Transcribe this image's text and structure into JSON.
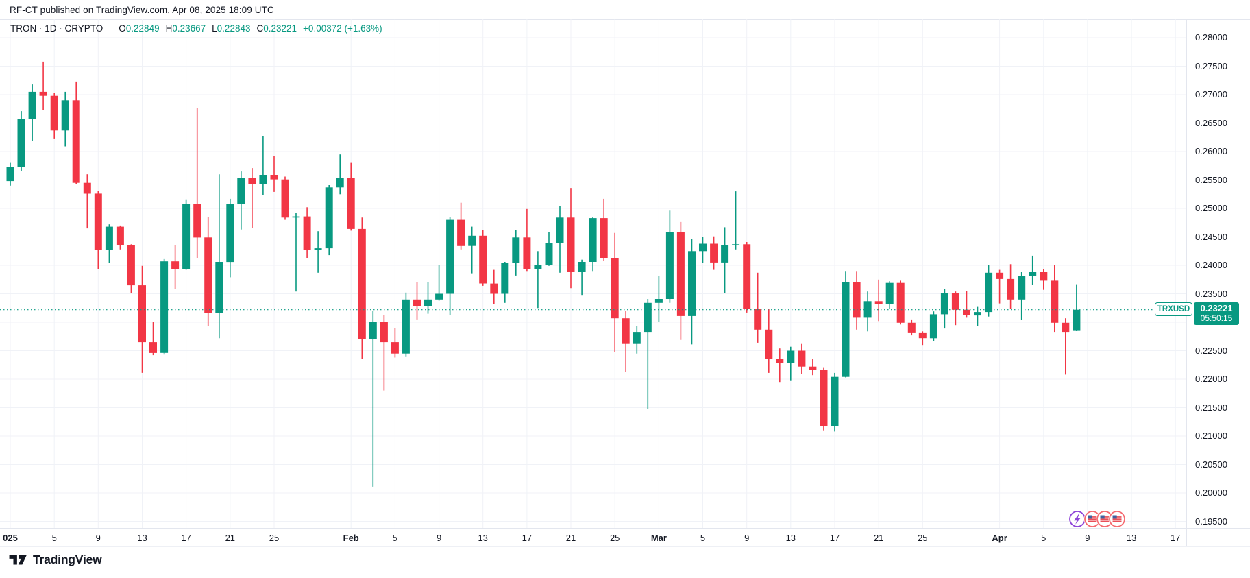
{
  "header": {
    "published_line": "RF-CT published on TradingView.com, Apr 08, 2025 18:09 UTC"
  },
  "legend": {
    "symbol": "TRON · 1D · CRYPTO",
    "o_label": "O",
    "o_value": "0.22849",
    "h_label": "H",
    "h_value": "0.23667",
    "l_label": "L",
    "l_value": "0.22843",
    "c_label": "C",
    "c_value": "0.23221",
    "change": "+0.00372 (+1.63%)"
  },
  "price_label": {
    "symbol": "TRXUSD",
    "price": "0.23221",
    "countdown": "05:50:15"
  },
  "footer": {
    "brand": "TradingView",
    "logo_icon": "tradingview-logo"
  },
  "colors": {
    "up": "#089981",
    "down": "#f23645",
    "grid": "#f0f2f7",
    "text": "#131722",
    "axis_line": "#e3e6ee",
    "accent": "#089981",
    "event_purple": "#8e44d8",
    "event_flag_border": "#f5696f",
    "flag_blue": "#41619e",
    "flag_red": "#e8505a"
  },
  "events": {
    "icons": [
      "lightning-event-icon",
      "us-flag-event-icon",
      "us-flag-event-icon",
      "us-flag-event-icon"
    ]
  },
  "chart_data": {
    "type": "bar",
    "subtype": "candlestick",
    "title": "TRON · 1D · CRYPTO",
    "xlabel": "",
    "ylabel": "",
    "grid": true,
    "legend_position": "none",
    "ylim": [
      0.195,
      0.28
    ],
    "y_tick_step": 0.005,
    "last_price": 0.23221,
    "y_ticks": [
      "0.28000",
      "0.27500",
      "0.27000",
      "0.26500",
      "0.26000",
      "0.25500",
      "0.25000",
      "0.24500",
      "0.24000",
      "0.23500",
      "0.23000",
      "0.22500",
      "0.22000",
      "0.21500",
      "0.21000",
      "0.20500",
      "0.20000",
      "0.19500"
    ],
    "x_ticks": [
      {
        "label": "025",
        "day": 0,
        "bold": true
      },
      {
        "label": "5",
        "day": 4
      },
      {
        "label": "9",
        "day": 8
      },
      {
        "label": "13",
        "day": 12
      },
      {
        "label": "17",
        "day": 16
      },
      {
        "label": "21",
        "day": 20
      },
      {
        "label": "25",
        "day": 24
      },
      {
        "label": "Feb",
        "day": 31,
        "bold": true
      },
      {
        "label": "5",
        "day": 35
      },
      {
        "label": "9",
        "day": 39
      },
      {
        "label": "13",
        "day": 43
      },
      {
        "label": "17",
        "day": 47
      },
      {
        "label": "21",
        "day": 51
      },
      {
        "label": "25",
        "day": 55
      },
      {
        "label": "Mar",
        "day": 59,
        "bold": true
      },
      {
        "label": "5",
        "day": 63
      },
      {
        "label": "9",
        "day": 67
      },
      {
        "label": "13",
        "day": 71
      },
      {
        "label": "17",
        "day": 75
      },
      {
        "label": "21",
        "day": 79
      },
      {
        "label": "25",
        "day": 83
      },
      {
        "label": "Apr",
        "day": 90,
        "bold": true
      },
      {
        "label": "5",
        "day": 94
      },
      {
        "label": "9",
        "day": 98
      },
      {
        "label": "13",
        "day": 102
      },
      {
        "label": "17",
        "day": 106
      }
    ],
    "candles_format": [
      "date",
      "open",
      "high",
      "low",
      "close"
    ],
    "candles": [
      [
        "2025-01-01",
        0.2548,
        0.258,
        0.254,
        0.2573
      ],
      [
        "2025-01-02",
        0.2573,
        0.2671,
        0.2566,
        0.2657
      ],
      [
        "2025-01-03",
        0.2657,
        0.2718,
        0.2619,
        0.2705
      ],
      [
        "2025-01-04",
        0.2705,
        0.2758,
        0.2673,
        0.2698
      ],
      [
        "2025-01-05",
        0.2698,
        0.2703,
        0.2623,
        0.2637
      ],
      [
        "2025-01-06",
        0.2637,
        0.2705,
        0.2609,
        0.269
      ],
      [
        "2025-01-07",
        0.269,
        0.2723,
        0.2543,
        0.2545
      ],
      [
        "2025-01-08",
        0.2545,
        0.256,
        0.2465,
        0.2526
      ],
      [
        "2025-01-09",
        0.2526,
        0.2531,
        0.2394,
        0.2427
      ],
      [
        "2025-01-10",
        0.2427,
        0.2472,
        0.2404,
        0.2468
      ],
      [
        "2025-01-11",
        0.2468,
        0.247,
        0.2428,
        0.2435
      ],
      [
        "2025-01-12",
        0.2435,
        0.2437,
        0.2351,
        0.2365
      ],
      [
        "2025-01-13",
        0.2365,
        0.2399,
        0.2211,
        0.2265
      ],
      [
        "2025-01-14",
        0.2265,
        0.2301,
        0.2242,
        0.2246
      ],
      [
        "2025-01-15",
        0.2246,
        0.2411,
        0.2243,
        0.2407
      ],
      [
        "2025-01-16",
        0.2407,
        0.2435,
        0.2359,
        0.2394
      ],
      [
        "2025-01-17",
        0.2394,
        0.2516,
        0.2392,
        0.2508
      ],
      [
        "2025-01-18",
        0.2508,
        0.2677,
        0.2412,
        0.2449
      ],
      [
        "2025-01-19",
        0.2449,
        0.2485,
        0.2294,
        0.2316
      ],
      [
        "2025-01-20",
        0.2316,
        0.256,
        0.2272,
        0.2406
      ],
      [
        "2025-01-21",
        0.2406,
        0.2517,
        0.2379,
        0.2508
      ],
      [
        "2025-01-22",
        0.2508,
        0.2565,
        0.2463,
        0.2554
      ],
      [
        "2025-01-23",
        0.2554,
        0.2571,
        0.2466,
        0.2543
      ],
      [
        "2025-01-24",
        0.2543,
        0.2627,
        0.2523,
        0.2559
      ],
      [
        "2025-01-25",
        0.2559,
        0.2592,
        0.2529,
        0.2551
      ],
      [
        "2025-01-26",
        0.2551,
        0.2556,
        0.248,
        0.2484
      ],
      [
        "2025-01-27",
        0.2484,
        0.2492,
        0.2354,
        0.2486
      ],
      [
        "2025-01-28",
        0.2486,
        0.2502,
        0.2412,
        0.2427
      ],
      [
        "2025-01-29",
        0.2427,
        0.246,
        0.2387,
        0.243
      ],
      [
        "2025-01-30",
        0.243,
        0.2541,
        0.2418,
        0.2537
      ],
      [
        "2025-01-31",
        0.2537,
        0.2595,
        0.2525,
        0.2554
      ],
      [
        "2025-02-01",
        0.2554,
        0.258,
        0.2461,
        0.2464
      ],
      [
        "2025-02-02",
        0.2464,
        0.2484,
        0.2235,
        0.227
      ],
      [
        "2025-02-03",
        0.227,
        0.232,
        0.2011,
        0.23
      ],
      [
        "2025-02-04",
        0.23,
        0.2312,
        0.218,
        0.2265
      ],
      [
        "2025-02-05",
        0.2265,
        0.229,
        0.2238,
        0.2245
      ],
      [
        "2025-02-06",
        0.2245,
        0.2352,
        0.224,
        0.234
      ],
      [
        "2025-02-07",
        0.234,
        0.237,
        0.2305,
        0.2328
      ],
      [
        "2025-02-08",
        0.2328,
        0.237,
        0.2315,
        0.234
      ],
      [
        "2025-02-09",
        0.234,
        0.24,
        0.2338,
        0.235
      ],
      [
        "2025-02-10",
        0.235,
        0.2485,
        0.2312,
        0.248
      ],
      [
        "2025-02-11",
        0.248,
        0.251,
        0.2428,
        0.2434
      ],
      [
        "2025-02-12",
        0.2434,
        0.2468,
        0.2386,
        0.2452
      ],
      [
        "2025-02-13",
        0.2452,
        0.2462,
        0.2364,
        0.2368
      ],
      [
        "2025-02-14",
        0.2368,
        0.2392,
        0.2332,
        0.235
      ],
      [
        "2025-02-15",
        0.235,
        0.2406,
        0.2334,
        0.2404
      ],
      [
        "2025-02-16",
        0.2404,
        0.2462,
        0.2382,
        0.2449
      ],
      [
        "2025-02-17",
        0.2449,
        0.2499,
        0.239,
        0.2394
      ],
      [
        "2025-02-18",
        0.2394,
        0.2425,
        0.2325,
        0.2401
      ],
      [
        "2025-02-19",
        0.2401,
        0.2458,
        0.2399,
        0.2439
      ],
      [
        "2025-02-20",
        0.2439,
        0.2504,
        0.2387,
        0.2484
      ],
      [
        "2025-02-21",
        0.2484,
        0.2536,
        0.236,
        0.2388
      ],
      [
        "2025-02-22",
        0.2388,
        0.241,
        0.2348,
        0.2406
      ],
      [
        "2025-02-23",
        0.2406,
        0.2485,
        0.239,
        0.2483
      ],
      [
        "2025-02-24",
        0.2483,
        0.2517,
        0.2408,
        0.2413
      ],
      [
        "2025-02-25",
        0.2413,
        0.2457,
        0.2248,
        0.2307
      ],
      [
        "2025-02-26",
        0.2307,
        0.232,
        0.2212,
        0.2263
      ],
      [
        "2025-02-27",
        0.2263,
        0.2293,
        0.2245,
        0.2283
      ],
      [
        "2025-02-28",
        0.2283,
        0.2341,
        0.2147,
        0.2334
      ],
      [
        "2025-03-01",
        0.2334,
        0.2381,
        0.23,
        0.2341
      ],
      [
        "2025-03-02",
        0.2341,
        0.2496,
        0.2334,
        0.2458
      ],
      [
        "2025-03-03",
        0.2458,
        0.2476,
        0.2269,
        0.2311
      ],
      [
        "2025-03-04",
        0.2311,
        0.2446,
        0.2261,
        0.2425
      ],
      [
        "2025-03-05",
        0.2425,
        0.245,
        0.2404,
        0.2438
      ],
      [
        "2025-03-06",
        0.2438,
        0.2451,
        0.2392,
        0.2405
      ],
      [
        "2025-03-07",
        0.2405,
        0.2467,
        0.2351,
        0.2435
      ],
      [
        "2025-03-08",
        0.2435,
        0.253,
        0.2428,
        0.2437
      ],
      [
        "2025-03-09",
        0.2437,
        0.2441,
        0.2317,
        0.2324
      ],
      [
        "2025-03-10",
        0.2324,
        0.2387,
        0.2264,
        0.2287
      ],
      [
        "2025-03-11",
        0.2287,
        0.2324,
        0.2211,
        0.2236
      ],
      [
        "2025-03-12",
        0.2236,
        0.2254,
        0.2195,
        0.2228
      ],
      [
        "2025-03-13",
        0.2228,
        0.2257,
        0.2198,
        0.225
      ],
      [
        "2025-03-14",
        0.225,
        0.2263,
        0.2209,
        0.2222
      ],
      [
        "2025-03-15",
        0.2222,
        0.2236,
        0.2207,
        0.2216
      ],
      [
        "2025-03-16",
        0.2216,
        0.2221,
        0.211,
        0.2117
      ],
      [
        "2025-03-17",
        0.2117,
        0.2211,
        0.2108,
        0.2204
      ],
      [
        "2025-03-18",
        0.2204,
        0.239,
        0.2203,
        0.237
      ],
      [
        "2025-03-19",
        0.237,
        0.239,
        0.2287,
        0.2308
      ],
      [
        "2025-03-20",
        0.2308,
        0.2354,
        0.2284,
        0.2337
      ],
      [
        "2025-03-21",
        0.2337,
        0.2375,
        0.2302,
        0.2332
      ],
      [
        "2025-03-22",
        0.2332,
        0.2372,
        0.2324,
        0.2369
      ],
      [
        "2025-03-23",
        0.2369,
        0.2373,
        0.2296,
        0.2299
      ],
      [
        "2025-03-24",
        0.2299,
        0.2305,
        0.2277,
        0.2282
      ],
      [
        "2025-03-25",
        0.2282,
        0.2284,
        0.226,
        0.2272
      ],
      [
        "2025-03-26",
        0.2272,
        0.2319,
        0.2267,
        0.2314
      ],
      [
        "2025-03-27",
        0.2314,
        0.2359,
        0.2289,
        0.2351
      ],
      [
        "2025-03-28",
        0.2351,
        0.2354,
        0.2295,
        0.2322
      ],
      [
        "2025-03-29",
        0.2322,
        0.2355,
        0.2308,
        0.2312
      ],
      [
        "2025-03-30",
        0.2312,
        0.2327,
        0.2294,
        0.2318
      ],
      [
        "2025-03-31",
        0.2318,
        0.2401,
        0.231,
        0.2387
      ],
      [
        "2025-04-01",
        0.2387,
        0.2392,
        0.2333,
        0.2376
      ],
      [
        "2025-04-02",
        0.2376,
        0.2402,
        0.2324,
        0.234
      ],
      [
        "2025-04-03",
        0.234,
        0.2389,
        0.2304,
        0.2381
      ],
      [
        "2025-04-04",
        0.2381,
        0.2417,
        0.2366,
        0.2389
      ],
      [
        "2025-04-05",
        0.2389,
        0.2393,
        0.2357,
        0.2373
      ],
      [
        "2025-04-06",
        0.2373,
        0.24,
        0.2283,
        0.2299
      ],
      [
        "2025-04-07",
        0.2299,
        0.2307,
        0.2208,
        0.2283
      ],
      [
        "2025-04-08",
        0.22849,
        0.23667,
        0.22843,
        0.23221
      ]
    ]
  }
}
